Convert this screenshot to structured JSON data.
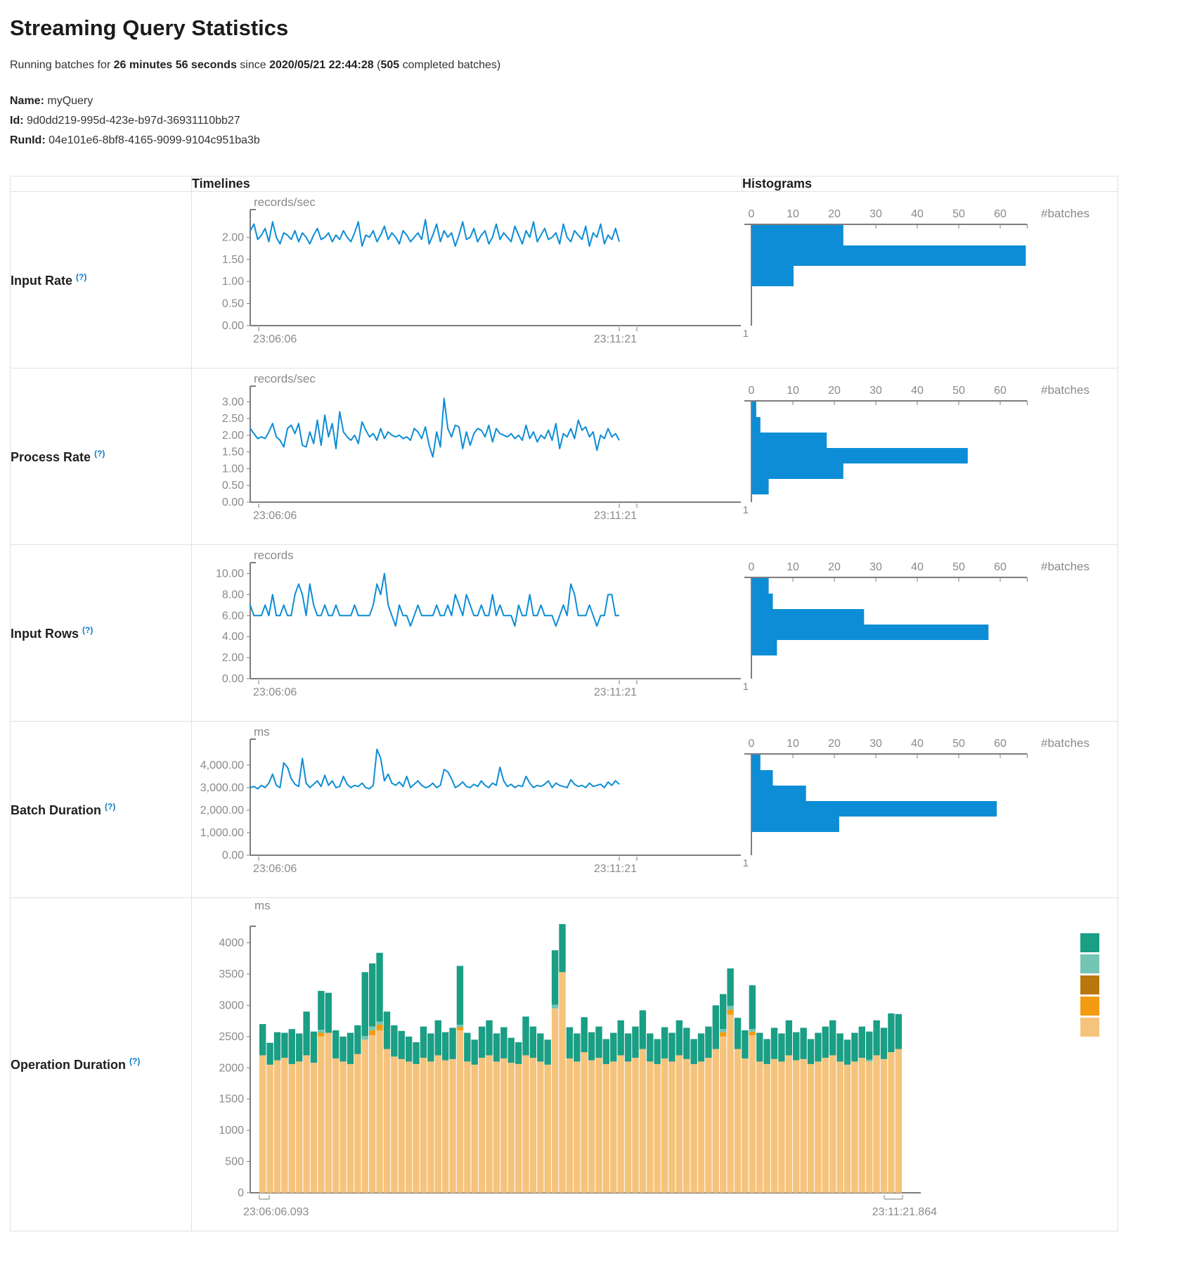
{
  "page": {
    "title": "Streaming Query Statistics"
  },
  "subtitle": {
    "t1": "Running batches for ",
    "b1": "26 minutes 56 seconds",
    "t2": " since ",
    "b2": "2020/05/21 22:44:28",
    "t3": " (",
    "b3": "505",
    "t4": " completed batches)"
  },
  "meta": {
    "name_label": "Name:",
    "name": "myQuery",
    "id_label": "Id:",
    "id": "9d0dd219-995d-423e-b97d-36931110bb27",
    "runid_label": "RunId:",
    "runid": "04e101e6-8bf8-4165-9099-9104c951ba3b"
  },
  "table": {
    "col_timelines": "Timelines",
    "col_histograms": "Histograms"
  },
  "colors": {
    "line": "#0d8dd5",
    "axis": "#7d7d7d",
    "tick_text": "#8a8a8a",
    "help": "#0b7cc4"
  },
  "rows": [
    {
      "label": "Input Rate",
      "help": "(?)",
      "timeline": {
        "type": "line",
        "unit": "records/sec",
        "ymax": 2.5,
        "yticks": [
          {
            "v": 0,
            "t": "0.00"
          },
          {
            "v": 0.5,
            "t": "0.50"
          },
          {
            "v": 1,
            "t": "1.00"
          },
          {
            "v": 1.5,
            "t": "1.50"
          },
          {
            "v": 2,
            "t": "2.00"
          }
        ],
        "xstart": "23:06:06",
        "xend": "23:11:21",
        "values": [
          2.15,
          2.3,
          1.95,
          2.05,
          2.2,
          1.9,
          2.35,
          2.0,
          1.85,
          2.1,
          2.05,
          1.95,
          2.15,
          1.9,
          2.1,
          2.0,
          1.85,
          2.05,
          2.2,
          1.95,
          2.0,
          2.1,
          1.9,
          2.05,
          1.95,
          2.15,
          2.0,
          1.9,
          2.1,
          2.35,
          1.8,
          2.05,
          2.0,
          2.15,
          1.9,
          2.05,
          2.25,
          1.95,
          2.1,
          2.0,
          1.85,
          2.15,
          2.05,
          1.9,
          2.0,
          2.1,
          1.95,
          2.4,
          1.85,
          2.05,
          2.3,
          1.9,
          2.15,
          2.0,
          2.1,
          1.8,
          2.05,
          2.35,
          1.95,
          2.0,
          2.2,
          1.9,
          2.05,
          2.15,
          1.85,
          2.0,
          2.3,
          1.95,
          2.1,
          2.0,
          1.9,
          2.25,
          2.05,
          1.85,
          2.15,
          2.0,
          2.35,
          1.9,
          2.05,
          2.2,
          1.95,
          2.0,
          2.1,
          1.85,
          2.3,
          2.0,
          1.9,
          2.15,
          2.05,
          1.95,
          2.25,
          1.8,
          2.1,
          2.0,
          2.3,
          1.85,
          2.05,
          1.95,
          2.2,
          1.9
        ]
      },
      "histogram": {
        "type": "bar",
        "unit": "#batches",
        "ticks": [
          0,
          10,
          20,
          30,
          40,
          50,
          60
        ],
        "axis_end": 66.5,
        "ylabel_bottom": "1",
        "bars": [
          22,
          66,
          10
        ]
      }
    },
    {
      "label": "Process Rate",
      "help": "(?)",
      "timeline": {
        "type": "line",
        "unit": "records/sec",
        "ymax": 3.3,
        "yticks": [
          {
            "v": 0,
            "t": "0.00"
          },
          {
            "v": 0.5,
            "t": "0.50"
          },
          {
            "v": 1,
            "t": "1.00"
          },
          {
            "v": 1.5,
            "t": "1.50"
          },
          {
            "v": 2,
            "t": "2.00"
          },
          {
            "v": 2.5,
            "t": "2.50"
          },
          {
            "v": 3,
            "t": "3.00"
          }
        ],
        "xstart": "23:06:06",
        "xend": "23:11:21",
        "values": [
          2.2,
          2.05,
          1.9,
          1.95,
          1.9,
          2.1,
          2.35,
          1.95,
          1.85,
          1.65,
          2.2,
          2.3,
          2.05,
          2.35,
          1.7,
          1.65,
          2.1,
          1.75,
          2.45,
          1.7,
          2.6,
          1.95,
          2.35,
          1.6,
          2.7,
          2.1,
          1.95,
          1.85,
          2.0,
          1.75,
          2.4,
          2.15,
          1.95,
          2.05,
          1.85,
          2.2,
          1.9,
          2.1,
          2.0,
          1.95,
          2.0,
          1.9,
          1.95,
          1.85,
          2.2,
          2.1,
          1.9,
          2.25,
          1.7,
          1.35,
          2.1,
          1.65,
          3.1,
          2.2,
          1.95,
          2.3,
          2.25,
          1.6,
          2.1,
          1.7,
          2.05,
          2.2,
          2.15,
          1.95,
          2.3,
          1.8,
          2.2,
          2.05,
          2.0,
          1.95,
          2.05,
          1.9,
          2.0,
          1.85,
          2.3,
          1.9,
          2.1,
          1.8,
          2.0,
          1.9,
          2.15,
          1.85,
          2.35,
          1.6,
          2.05,
          1.95,
          2.2,
          1.9,
          2.45,
          2.15,
          2.25,
          1.95,
          2.1,
          1.55,
          2.0,
          1.9,
          2.2,
          1.95,
          2.05,
          1.85
        ]
      },
      "histogram": {
        "type": "bar",
        "unit": "#batches",
        "ticks": [
          0,
          10,
          20,
          30,
          40,
          50,
          60
        ],
        "axis_end": 66.5,
        "ylabel_bottom": "1",
        "bars": [
          1,
          2,
          18,
          52,
          22,
          4
        ]
      }
    },
    {
      "label": "Input Rows",
      "help": "(?)",
      "timeline": {
        "type": "line",
        "unit": "records",
        "ymax": 10.5,
        "yticks": [
          {
            "v": 0,
            "t": "0.00"
          },
          {
            "v": 2,
            "t": "2.00"
          },
          {
            "v": 4,
            "t": "4.00"
          },
          {
            "v": 6,
            "t": "6.00"
          },
          {
            "v": 8,
            "t": "8.00"
          },
          {
            "v": 10,
            "t": "10.00"
          }
        ],
        "xstart": "23:06:06",
        "xend": "23:11:21",
        "values": [
          7,
          6,
          6,
          6,
          7,
          6,
          8,
          6,
          6,
          7,
          6,
          6,
          8,
          9,
          8,
          6,
          9,
          7,
          6,
          6,
          7,
          6,
          6,
          7,
          6,
          6,
          6,
          6,
          7,
          6,
          6,
          6,
          6,
          7,
          9,
          8,
          10,
          7,
          6,
          5,
          7,
          6,
          6,
          5,
          6,
          7,
          6,
          6,
          6,
          6,
          7,
          6,
          6,
          7,
          6,
          8,
          7,
          6,
          8,
          7,
          6,
          6,
          7,
          6,
          6,
          8,
          6,
          7,
          6,
          6,
          6,
          5,
          7,
          6,
          6,
          8,
          6,
          6,
          7,
          6,
          6,
          6,
          5,
          6,
          7,
          6,
          9,
          8,
          6,
          6,
          6,
          7,
          6,
          5,
          6,
          6,
          8,
          8,
          6,
          6
        ]
      },
      "histogram": {
        "type": "bar",
        "unit": "#batches",
        "ticks": [
          0,
          10,
          20,
          30,
          40,
          50,
          60
        ],
        "axis_end": 66.5,
        "ylabel_bottom": "1",
        "bars": [
          4,
          5,
          27,
          57,
          6
        ]
      }
    },
    {
      "label": "Batch Duration",
      "help": "(?)",
      "timeline": {
        "type": "line",
        "unit": "ms",
        "ymax": 4900,
        "yticks": [
          {
            "v": 0,
            "t": "0.00"
          },
          {
            "v": 1000,
            "t": "1,000.00"
          },
          {
            "v": 2000,
            "t": "2,000.00"
          },
          {
            "v": 3000,
            "t": "3,000.00"
          },
          {
            "v": 4000,
            "t": "4,000.00"
          }
        ],
        "xstart": "23:06:06",
        "xend": "23:11:21",
        "values": [
          3000,
          3050,
          2950,
          3100,
          3000,
          3200,
          3600,
          3100,
          3000,
          4100,
          3900,
          3400,
          3150,
          3050,
          4300,
          3200,
          3000,
          3150,
          3300,
          3050,
          3550,
          3100,
          3300,
          3000,
          3050,
          3500,
          3150,
          3000,
          3100,
          3050,
          3200,
          3000,
          2950,
          3100,
          4700,
          4300,
          3300,
          3600,
          3200,
          3100,
          3250,
          3050,
          3500,
          3000,
          3150,
          3300,
          3100,
          3000,
          3050,
          3200,
          3000,
          3100,
          3800,
          3700,
          3400,
          3000,
          3100,
          3250,
          3050,
          3000,
          3150,
          3050,
          3300,
          3100,
          3000,
          3200,
          3100,
          3900,
          3300,
          3050,
          3150,
          3000,
          3100,
          3050,
          3500,
          3200,
          3000,
          3100,
          3050,
          3150,
          3300,
          3000,
          3200,
          3100,
          3050,
          3000,
          3350,
          3150,
          3050,
          3100,
          3000,
          3200,
          3050,
          3100,
          3150,
          3000,
          3250,
          3100,
          3300,
          3150
        ]
      },
      "histogram": {
        "type": "bar",
        "unit": "#batches",
        "ticks": [
          0,
          10,
          20,
          30,
          40,
          50,
          60
        ],
        "axis_end": 66.5,
        "ylabel_bottom": "1",
        "bars": [
          2,
          5,
          13,
          59,
          21
        ]
      }
    }
  ],
  "operation": {
    "label": "Operation Duration",
    "help": "(?)",
    "legend_colors": [
      "#1a9e84",
      "#74c5b4",
      "#b9770e",
      "#f39c12",
      "#f6c37c"
    ],
    "chart": {
      "type": "stacked-bar",
      "unit": "ms",
      "ymax": 4400,
      "yticks": [
        {
          "v": 0,
          "t": "0"
        },
        {
          "v": 500,
          "t": "500"
        },
        {
          "v": 1000,
          "t": "1000"
        },
        {
          "v": 1500,
          "t": "1500"
        },
        {
          "v": 2000,
          "t": "2000"
        },
        {
          "v": 2500,
          "t": "2500"
        },
        {
          "v": 3000,
          "t": "3000"
        },
        {
          "v": 3500,
          "t": "3500"
        },
        {
          "v": 4000,
          "t": "4000"
        }
      ],
      "xstart": "23:06:06.093",
      "xend": "23:11:21.864",
      "series": [
        {
          "name": "light-orange",
          "color": "#f6c37c",
          "values": [
            2200,
            2050,
            2120,
            2160,
            2060,
            2100,
            2200,
            2080,
            2500,
            2560,
            2150,
            2100,
            2060,
            2220,
            2450,
            2520,
            2600,
            2300,
            2180,
            2140,
            2100,
            2060,
            2160,
            2100,
            2200,
            2120,
            2140,
            2600,
            2100,
            2050,
            2160,
            2200,
            2100,
            2150,
            2080,
            2060,
            2200,
            2160,
            2100,
            2050,
            2950,
            3530,
            2150,
            2100,
            2250,
            2120,
            2160,
            2060,
            2100,
            2200,
            2100,
            2160,
            2300,
            2100,
            2060,
            2150,
            2100,
            2200,
            2140,
            2060,
            2100,
            2160,
            2300,
            2500,
            2850,
            2300,
            2150,
            2520,
            2100,
            2060,
            2140,
            2100,
            2200,
            2120,
            2140,
            2060,
            2100,
            2160,
            2200,
            2100,
            2050,
            2100,
            2160,
            2100,
            2200,
            2140,
            2250,
            2300
          ]
        },
        {
          "name": "orange",
          "color": "#f39c12",
          "values": [
            0,
            0,
            0,
            0,
            0,
            0,
            0,
            0,
            60,
            0,
            0,
            0,
            0,
            0,
            0,
            80,
            90,
            0,
            0,
            0,
            0,
            0,
            0,
            0,
            0,
            0,
            0,
            50,
            0,
            0,
            0,
            0,
            0,
            0,
            0,
            0,
            0,
            0,
            0,
            0,
            0,
            0,
            0,
            0,
            0,
            0,
            0,
            0,
            0,
            0,
            0,
            0,
            0,
            0,
            0,
            0,
            0,
            0,
            0,
            0,
            0,
            0,
            0,
            70,
            80,
            0,
            0,
            60,
            0,
            0,
            0,
            0,
            0,
            0,
            0,
            0,
            0,
            0,
            0,
            0,
            0,
            0,
            0,
            0,
            0,
            0,
            0,
            0
          ]
        },
        {
          "name": "dark-orange",
          "color": "#b9770e",
          "values": [
            0,
            0,
            0,
            0,
            0,
            0,
            0,
            0,
            0,
            0,
            0,
            0,
            0,
            0,
            0,
            0,
            0,
            0,
            0,
            0,
            0,
            0,
            0,
            0,
            0,
            0,
            0,
            0,
            0,
            0,
            0,
            0,
            0,
            0,
            0,
            0,
            0,
            0,
            0,
            0,
            0,
            0,
            0,
            0,
            0,
            0,
            0,
            0,
            0,
            0,
            0,
            0,
            0,
            0,
            0,
            0,
            0,
            0,
            0,
            0,
            0,
            0,
            0,
            0,
            0,
            0,
            0,
            0,
            0,
            0,
            0,
            0,
            0,
            0,
            0,
            0,
            0,
            0,
            0,
            0,
            0,
            0,
            0,
            0,
            0,
            0,
            0,
            0
          ]
        },
        {
          "name": "light-teal",
          "color": "#74c5b4",
          "values": [
            0,
            0,
            0,
            0,
            0,
            0,
            0,
            0,
            50,
            0,
            0,
            0,
            0,
            0,
            60,
            60,
            50,
            0,
            0,
            0,
            0,
            0,
            0,
            0,
            0,
            0,
            0,
            40,
            0,
            0,
            0,
            0,
            0,
            0,
            0,
            0,
            0,
            0,
            0,
            0,
            60,
            0,
            0,
            0,
            0,
            0,
            0,
            0,
            0,
            0,
            0,
            0,
            0,
            0,
            0,
            0,
            0,
            0,
            0,
            0,
            0,
            0,
            0,
            50,
            60,
            0,
            0,
            40,
            0,
            0,
            0,
            0,
            0,
            0,
            0,
            0,
            0,
            0,
            0,
            0,
            0,
            0,
            0,
            30,
            0,
            0,
            0,
            0
          ]
        },
        {
          "name": "teal",
          "color": "#1a9e84",
          "values": [
            500,
            350,
            450,
            400,
            560,
            450,
            700,
            500,
            620,
            640,
            450,
            400,
            500,
            460,
            1020,
            1010,
            1100,
            600,
            500,
            450,
            400,
            350,
            500,
            450,
            560,
            450,
            500,
            940,
            460,
            400,
            500,
            560,
            450,
            500,
            400,
            350,
            620,
            500,
            450,
            400,
            870,
            770,
            500,
            450,
            560,
            450,
            500,
            400,
            460,
            560,
            450,
            500,
            620,
            450,
            400,
            500,
            460,
            560,
            500,
            400,
            450,
            500,
            700,
            560,
            600,
            500,
            450,
            700,
            460,
            400,
            500,
            450,
            560,
            450,
            500,
            400,
            460,
            500,
            560,
            450,
            400,
            460,
            500,
            450,
            560,
            500,
            620,
            560
          ]
        }
      ]
    }
  }
}
